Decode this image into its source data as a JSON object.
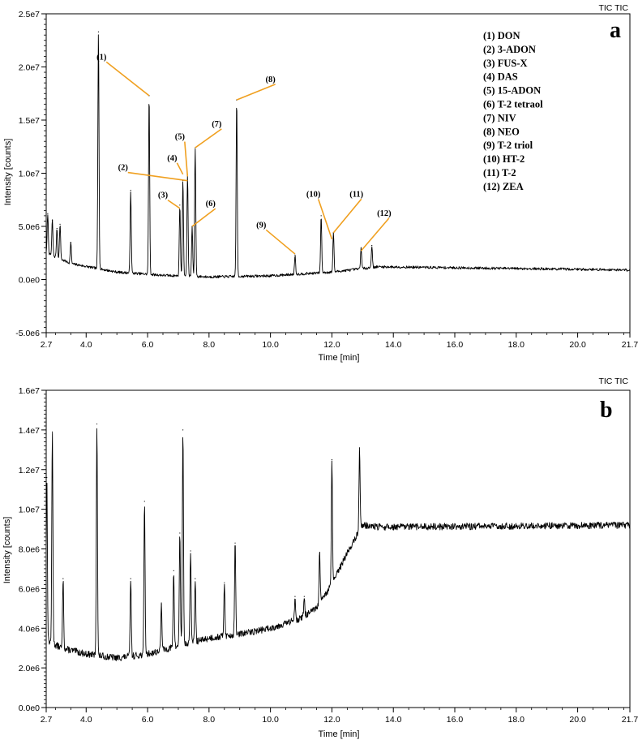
{
  "chart_data": [
    {
      "type": "line",
      "panel_label": "a",
      "header": "TIC TIC",
      "xlabel": "Time [min]",
      "ylabel": "Intensity [counts]",
      "xlim": [
        2.7,
        21.7
      ],
      "ylim": [
        -5000000,
        25000000
      ],
      "x_ticks": [
        2.7,
        4.0,
        6.0,
        8.0,
        10.0,
        12.0,
        14.0,
        16.0,
        18.0,
        20.0,
        21.7
      ],
      "x_tick_labels": [
        "2.7",
        "4.0",
        "6.0",
        "8.0",
        "10.0",
        "12.0",
        "14.0",
        "16.0",
        "18.0",
        "20.0",
        "21.7"
      ],
      "y_ticks": [
        -5000000,
        0,
        5000000,
        10000000,
        15000000,
        20000000,
        25000000
      ],
      "y_tick_labels": [
        "-5.0e6",
        "0.0e0",
        "5.0e6",
        "1.0e7",
        "1.5e7",
        "2.0e7",
        "2.5e7"
      ],
      "grid": false,
      "legend_position": "top-right",
      "legend_entries": [
        "(1) DON",
        "(2) 3-ADON",
        "(3) FUS-X",
        "(4) DAS",
        "(5) 15-ADON",
        "(6) T-2 tetraol",
        "(7) NIV",
        "(8) NEO",
        "(9) T-2 triol",
        "(10) HT-2",
        "(11) T-2",
        "(12) ZEA"
      ],
      "baseline": [
        [
          2.7,
          2500000
        ],
        [
          3.5,
          1500000
        ],
        [
          5.0,
          700000
        ],
        [
          6.5,
          400000
        ],
        [
          8.0,
          250000
        ],
        [
          10.0,
          350000
        ],
        [
          12.0,
          700000
        ],
        [
          13.5,
          1200000
        ],
        [
          21.7,
          900000
        ]
      ],
      "peaks": [
        {
          "x": 2.75,
          "y": 6200000
        },
        {
          "x": 2.9,
          "y": 5600000
        },
        {
          "x": 3.05,
          "y": 4800000
        },
        {
          "x": 3.15,
          "y": 5200000
        },
        {
          "x": 3.5,
          "y": 3500000
        },
        {
          "x": 4.4,
          "y": 23300000
        },
        {
          "x": 5.45,
          "y": 8400000
        },
        {
          "x": 6.05,
          "y": 17300000
        },
        {
          "x": 7.05,
          "y": 7000000
        },
        {
          "x": 7.15,
          "y": 9300000
        },
        {
          "x": 7.3,
          "y": 9900000
        },
        {
          "x": 7.45,
          "y": 5000000
        },
        {
          "x": 7.55,
          "y": 12400000
        },
        {
          "x": 8.9,
          "y": 16900000
        },
        {
          "x": 10.8,
          "y": 2300000
        },
        {
          "x": 11.65,
          "y": 6000000
        },
        {
          "x": 12.05,
          "y": 4400000
        },
        {
          "x": 12.95,
          "y": 3000000
        },
        {
          "x": 13.3,
          "y": 3200000
        }
      ],
      "annotations": [
        {
          "label": "(1)",
          "x": 6.05,
          "y": 17300000,
          "label_x": 4.5,
          "label_y": 20700000
        },
        {
          "label": "(2)",
          "x": 7.3,
          "y": 9300000,
          "label_x": 5.2,
          "label_y": 10300000
        },
        {
          "label": "(3)",
          "x": 7.05,
          "y": 6700000,
          "label_x": 6.5,
          "label_y": 7700000
        },
        {
          "label": "(4)",
          "x": 7.15,
          "y": 9900000,
          "label_x": 6.8,
          "label_y": 11200000
        },
        {
          "label": "(5)",
          "x": 7.3,
          "y": 9700000,
          "label_x": 7.05,
          "label_y": 13200000
        },
        {
          "label": "(6)",
          "x": 7.45,
          "y": 5000000,
          "label_x": 8.05,
          "label_y": 6900000
        },
        {
          "label": "(7)",
          "x": 7.55,
          "y": 12400000,
          "label_x": 8.25,
          "label_y": 14400000
        },
        {
          "label": "(8)",
          "x": 8.9,
          "y": 16900000,
          "label_x": 10.0,
          "label_y": 18600000
        },
        {
          "label": "(9)",
          "x": 10.8,
          "y": 2400000,
          "label_x": 9.7,
          "label_y": 4900000
        },
        {
          "label": "(10)",
          "x": 12.0,
          "y": 3800000,
          "label_x": 11.4,
          "label_y": 7800000
        },
        {
          "label": "(11)",
          "x": 12.05,
          "y": 4400000,
          "label_x": 12.8,
          "label_y": 7800000
        },
        {
          "label": "(12)",
          "x": 12.95,
          "y": 2700000,
          "label_x": 13.7,
          "label_y": 6000000
        }
      ],
      "noise_amplitude": 120000
    },
    {
      "type": "line",
      "panel_label": "b",
      "header": "TIC TIC",
      "xlabel": "Time [min]",
      "ylabel": "Intensity [counts]",
      "xlim": [
        2.7,
        21.7
      ],
      "ylim": [
        0,
        16000000
      ],
      "x_ticks": [
        2.7,
        4.0,
        6.0,
        8.0,
        10.0,
        12.0,
        14.0,
        16.0,
        18.0,
        20.0,
        21.7
      ],
      "x_tick_labels": [
        "2.7",
        "4.0",
        "6.0",
        "8.0",
        "10.0",
        "12.0",
        "14.0",
        "16.0",
        "18.0",
        "20.0",
        "21.7"
      ],
      "y_ticks": [
        0,
        2000000,
        4000000,
        6000000,
        8000000,
        10000000,
        12000000,
        14000000,
        16000000
      ],
      "y_tick_labels": [
        "0.0e0",
        "2.0e6",
        "4.0e6",
        "6.0e6",
        "8.0e6",
        "1.0e7",
        "1.2e7",
        "1.4e7",
        "1.6e7"
      ],
      "grid": false,
      "baseline": [
        [
          2.7,
          3400000
        ],
        [
          3.2,
          3000000
        ],
        [
          4.0,
          2700000
        ],
        [
          5.0,
          2500000
        ],
        [
          6.0,
          2700000
        ],
        [
          7.0,
          3100000
        ],
        [
          8.0,
          3500000
        ],
        [
          9.0,
          3700000
        ],
        [
          10.0,
          4000000
        ],
        [
          11.0,
          4500000
        ],
        [
          11.5,
          5000000
        ],
        [
          12.0,
          6200000
        ],
        [
          12.5,
          7800000
        ],
        [
          13.0,
          9200000
        ],
        [
          13.5,
          9100000
        ],
        [
          21.7,
          9200000
        ]
      ],
      "peaks": [
        {
          "x": 2.72,
          "y": 11600000
        },
        {
          "x": 2.9,
          "y": 13900000
        },
        {
          "x": 3.25,
          "y": 6500000
        },
        {
          "x": 4.35,
          "y": 14300000
        },
        {
          "x": 5.45,
          "y": 6500000
        },
        {
          "x": 5.9,
          "y": 10400000
        },
        {
          "x": 6.45,
          "y": 5200000
        },
        {
          "x": 6.85,
          "y": 6900000
        },
        {
          "x": 7.05,
          "y": 8800000
        },
        {
          "x": 7.15,
          "y": 14000000
        },
        {
          "x": 7.4,
          "y": 7900000
        },
        {
          "x": 7.55,
          "y": 6500000
        },
        {
          "x": 8.5,
          "y": 6300000
        },
        {
          "x": 8.85,
          "y": 8300000
        },
        {
          "x": 10.8,
          "y": 5600000
        },
        {
          "x": 11.1,
          "y": 5600000
        },
        {
          "x": 11.6,
          "y": 7800000
        },
        {
          "x": 12.0,
          "y": 12500000
        },
        {
          "x": 12.9,
          "y": 13100000
        }
      ],
      "noise_amplitude": 170000
    }
  ]
}
